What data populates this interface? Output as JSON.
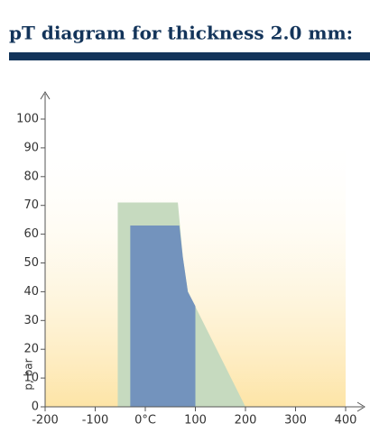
{
  "chart_data": {
    "type": "area",
    "title": "pT diagram for  thickness 2.0 mm:",
    "y_label": "p, bar",
    "series": [
      {
        "color": "#c6dabf",
        "x": [
          -55,
          -55,
          65,
          75,
          85,
          200
        ],
        "values": [
          0,
          71,
          71,
          52,
          40,
          0
        ]
      },
      {
        "color": "#7393bd",
        "x": [
          -30,
          -30,
          68,
          75,
          85,
          100,
          100
        ],
        "values": [
          0,
          63,
          63,
          52,
          40,
          35,
          0
        ]
      }
    ],
    "xlim": [
      -200,
      400
    ],
    "ylim": [
      0,
      100
    ],
    "xticks": [
      -200,
      -100,
      {
        "value": 0,
        "label": "0°C"
      },
      100,
      200,
      300,
      400
    ],
    "yticks": [
      0,
      10,
      20,
      30,
      40,
      50,
      60,
      70,
      80,
      90,
      100
    ]
  }
}
